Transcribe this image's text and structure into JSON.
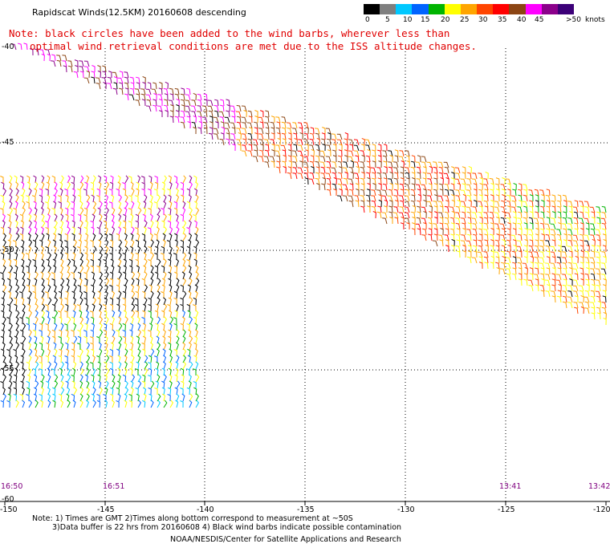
{
  "title": "Rapidscat Winds(12.5KM) 20160608 descending",
  "note_line1": "Note: black circles have been added to the wind barbs, wherever less than",
  "note_line2": "optimal wind retrieval conditions are met due to the ISS altitude changes.",
  "legend": {
    "labels": [
      "0",
      "5",
      "10",
      "15",
      "20",
      "25",
      "30",
      "35",
      "40",
      "45",
      ">50",
      "knots"
    ],
    "colors": [
      "#000000",
      "#7f7f7f",
      "#00c8ff",
      "#0064ff",
      "#00b400",
      "#ffff00",
      "#ffa500",
      "#ff4500",
      "#ff0000",
      "#8b4513",
      "#ff00ff",
      "#8b008b",
      "#3c0078"
    ]
  },
  "longitude_labels": [
    "-150",
    "-145",
    "-140",
    "-135",
    "-130",
    "-125",
    "-120"
  ],
  "latitude_labels": [
    "-40",
    "-45",
    "-50",
    "-55",
    "-60"
  ],
  "time_labels": [
    "16:50",
    "16:51",
    "13:41",
    "13:42"
  ],
  "footer": {
    "line1": "Note: 1) Times are GMT 2)Times along bottom correspond to measurement at ~50S",
    "line2": "3)Data buffer is 22 hrs from 20160608 4) Black wind barbs indicate possible contamination",
    "line3": "NOAA/NESDIS/Center for Satellite Applications and Research"
  }
}
